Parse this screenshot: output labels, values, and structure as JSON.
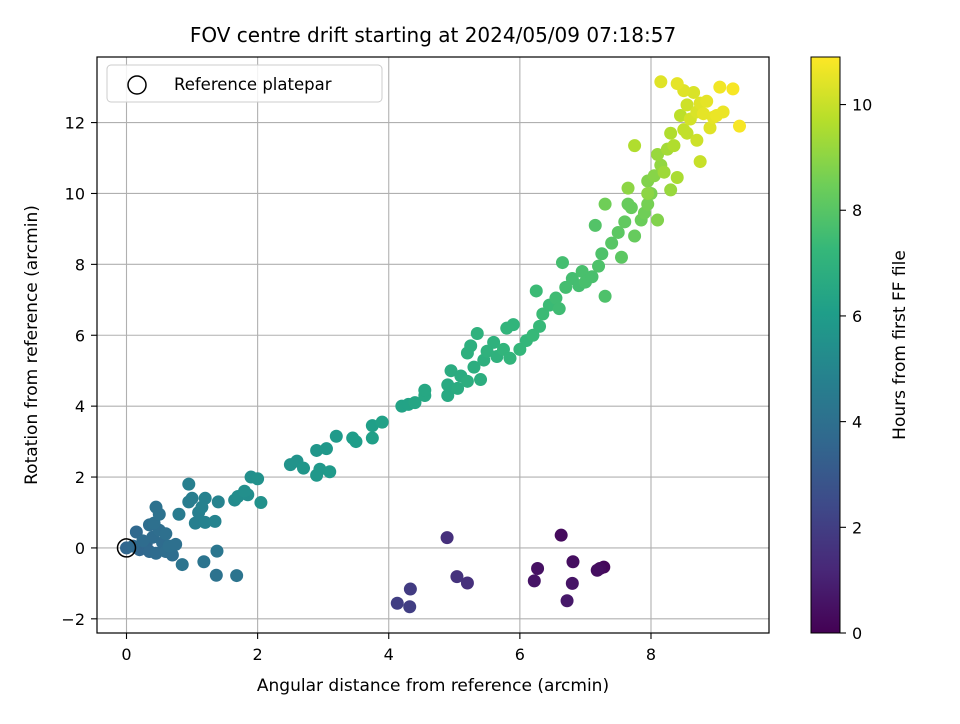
{
  "chart_data": {
    "type": "scatter",
    "title": "FOV centre drift starting at 2024/05/09 07:18:57",
    "xlabel": "Angular distance from reference (arcmin)",
    "ylabel": "Rotation from reference (arcmin)",
    "xlim": [
      -0.45,
      9.8
    ],
    "ylim": [
      -2.4,
      13.85
    ],
    "xticks": [
      0,
      2,
      4,
      6,
      8
    ],
    "yticks": [
      -2,
      0,
      2,
      4,
      6,
      8,
      10,
      12
    ],
    "grid": true,
    "colormap": "viridis",
    "color_variable": "Hours from first FF file",
    "colorbar": {
      "label": "Hours from first FF file",
      "range": [
        0,
        10.9
      ],
      "ticks": [
        0,
        2,
        4,
        6,
        8,
        10
      ]
    },
    "legend": {
      "position": "upper-left",
      "entries": [
        "Reference platepar"
      ]
    },
    "reference_point": {
      "x": 0,
      "y": 0,
      "marker": "hollow-circle"
    },
    "series": [
      {
        "points": [
          [
            6.63,
            0.36,
            0.3
          ],
          [
            6.81,
            -0.39,
            0.4
          ],
          [
            6.27,
            -0.58,
            0.5
          ],
          [
            6.22,
            -0.93,
            0.6
          ],
          [
            6.8,
            -1.0,
            0.6
          ],
          [
            6.72,
            -1.49,
            0.7
          ],
          [
            7.28,
            -0.54,
            0.2
          ],
          [
            7.22,
            -0.58,
            0.3
          ],
          [
            7.18,
            -0.63,
            0.4
          ],
          [
            4.89,
            0.29,
            1.5
          ],
          [
            5.04,
            -0.81,
            1.6
          ],
          [
            5.2,
            -0.99,
            1.5
          ],
          [
            4.33,
            -1.16,
            1.9
          ],
          [
            4.13,
            -1.56,
            2.0
          ],
          [
            4.32,
            -1.66,
            2.0
          ],
          [
            0.0,
            0.0,
            3.6
          ],
          [
            0.15,
            0.45,
            3.7
          ],
          [
            0.2,
            -0.05,
            3.6
          ],
          [
            0.3,
            0.1,
            3.6
          ],
          [
            0.35,
            -0.1,
            3.7
          ],
          [
            0.4,
            0.3,
            3.8
          ],
          [
            0.45,
            -0.15,
            3.8
          ],
          [
            0.5,
            0.5,
            3.9
          ],
          [
            0.55,
            0.15,
            3.8
          ],
          [
            0.6,
            -0.1,
            3.9
          ],
          [
            0.65,
            0.05,
            4.0
          ],
          [
            0.7,
            -0.2,
            3.9
          ],
          [
            0.75,
            0.1,
            4.0
          ],
          [
            0.42,
            0.7,
            4.0
          ],
          [
            0.5,
            0.95,
            4.1
          ],
          [
            0.45,
            1.15,
            4.1
          ],
          [
            0.35,
            0.65,
            3.9
          ],
          [
            0.25,
            0.2,
            3.8
          ],
          [
            0.1,
            0.05,
            3.7
          ],
          [
            0.6,
            0.4,
            4.0
          ],
          [
            0.85,
            -0.47,
            4.2
          ],
          [
            1.18,
            -0.39,
            4.2
          ],
          [
            1.38,
            -0.09,
            4.3
          ],
          [
            1.37,
            -0.77,
            4.1
          ],
          [
            1.68,
            -0.78,
            4.2
          ],
          [
            0.8,
            0.95,
            4.5
          ],
          [
            0.95,
            1.3,
            4.6
          ],
          [
            1.0,
            1.4,
            4.6
          ],
          [
            1.1,
            1.0,
            4.7
          ],
          [
            1.2,
            1.4,
            4.8
          ],
          [
            1.05,
            0.7,
            4.7
          ],
          [
            1.2,
            0.72,
            4.8
          ],
          [
            1.35,
            0.75,
            4.9
          ],
          [
            1.4,
            1.3,
            4.9
          ],
          [
            0.95,
            1.8,
            4.7
          ],
          [
            1.15,
            1.15,
            4.8
          ],
          [
            1.7,
            1.45,
            5.3
          ],
          [
            1.8,
            1.6,
            5.4
          ],
          [
            1.9,
            2.0,
            5.4
          ],
          [
            2.0,
            1.95,
            5.5
          ],
          [
            1.65,
            1.35,
            5.2
          ],
          [
            2.05,
            1.28,
            5.5
          ],
          [
            1.85,
            1.5,
            5.3
          ],
          [
            2.5,
            2.35,
            5.6
          ],
          [
            2.6,
            2.45,
            5.6
          ],
          [
            2.7,
            2.25,
            5.7
          ],
          [
            2.9,
            2.05,
            5.8
          ],
          [
            2.95,
            2.22,
            5.8
          ],
          [
            3.1,
            2.15,
            5.9
          ],
          [
            2.9,
            2.75,
            5.7
          ],
          [
            3.05,
            2.8,
            5.8
          ],
          [
            3.2,
            3.15,
            5.9
          ],
          [
            3.45,
            3.1,
            6.0
          ],
          [
            3.5,
            3.0,
            6.0
          ],
          [
            3.75,
            3.1,
            6.1
          ],
          [
            3.75,
            3.45,
            6.1
          ],
          [
            3.9,
            3.55,
            6.2
          ],
          [
            4.2,
            4.0,
            6.3
          ],
          [
            4.3,
            4.05,
            6.3
          ],
          [
            4.4,
            4.1,
            6.4
          ],
          [
            4.55,
            4.3,
            6.5
          ],
          [
            4.55,
            4.45,
            6.5
          ],
          [
            4.9,
            4.3,
            6.6
          ],
          [
            4.9,
            4.6,
            6.6
          ],
          [
            4.95,
            5.0,
            6.7
          ],
          [
            5.05,
            4.5,
            6.7
          ],
          [
            5.2,
            4.7,
            6.8
          ],
          [
            5.1,
            4.85,
            6.7
          ],
          [
            5.3,
            5.1,
            6.8
          ],
          [
            5.4,
            4.75,
            6.8
          ],
          [
            5.2,
            5.5,
            6.9
          ],
          [
            5.25,
            5.7,
            6.9
          ],
          [
            5.35,
            6.05,
            7.0
          ],
          [
            5.5,
            5.55,
            7.0
          ],
          [
            5.6,
            5.8,
            7.0
          ],
          [
            5.45,
            5.3,
            6.9
          ],
          [
            5.65,
            5.4,
            7.0
          ],
          [
            5.75,
            5.6,
            7.1
          ],
          [
            5.8,
            6.2,
            7.1
          ],
          [
            5.9,
            6.3,
            7.1
          ],
          [
            5.85,
            5.35,
            7.1
          ],
          [
            6.0,
            5.6,
            7.2
          ],
          [
            6.1,
            5.85,
            7.2
          ],
          [
            6.2,
            6.0,
            7.3
          ],
          [
            6.3,
            6.25,
            7.3
          ],
          [
            6.35,
            6.6,
            7.4
          ],
          [
            6.45,
            6.85,
            7.4
          ],
          [
            6.55,
            7.05,
            7.5
          ],
          [
            6.25,
            7.25,
            7.4
          ],
          [
            6.6,
            6.75,
            7.5
          ],
          [
            6.7,
            7.35,
            7.6
          ],
          [
            6.8,
            7.6,
            7.6
          ],
          [
            6.9,
            7.4,
            7.6
          ],
          [
            6.95,
            7.8,
            7.7
          ],
          [
            7.0,
            7.5,
            7.7
          ],
          [
            7.1,
            7.65,
            7.7
          ],
          [
            7.2,
            7.95,
            7.8
          ],
          [
            7.3,
            7.1,
            7.8
          ],
          [
            7.25,
            8.3,
            7.8
          ],
          [
            6.65,
            8.05,
            7.6
          ],
          [
            7.15,
            9.1,
            7.9
          ],
          [
            7.4,
            8.6,
            8.0
          ],
          [
            7.5,
            8.9,
            8.1
          ],
          [
            7.55,
            8.2,
            8.1
          ],
          [
            7.6,
            9.2,
            8.2
          ],
          [
            7.7,
            9.6,
            8.3
          ],
          [
            7.75,
            8.8,
            8.3
          ],
          [
            7.65,
            9.7,
            8.3
          ],
          [
            7.85,
            9.25,
            8.4
          ],
          [
            7.9,
            9.45,
            8.5
          ],
          [
            7.95,
            9.7,
            8.6
          ],
          [
            8.0,
            10.0,
            8.7
          ],
          [
            7.95,
            10.35,
            8.8
          ],
          [
            8.05,
            10.5,
            8.9
          ],
          [
            8.1,
            9.25,
            8.8
          ],
          [
            8.15,
            10.8,
            9.1
          ],
          [
            8.1,
            11.1,
            9.2
          ],
          [
            8.2,
            10.6,
            9.3
          ],
          [
            8.25,
            11.25,
            9.4
          ],
          [
            8.3,
            10.1,
            9.2
          ],
          [
            8.3,
            11.7,
            9.6
          ],
          [
            8.35,
            11.35,
            9.6
          ],
          [
            8.4,
            10.45,
            9.5
          ],
          [
            8.45,
            12.2,
            9.8
          ],
          [
            8.5,
            11.8,
            9.9
          ],
          [
            8.55,
            12.5,
            10.1
          ],
          [
            8.6,
            12.1,
            10.2
          ],
          [
            8.65,
            12.85,
            10.3
          ],
          [
            8.7,
            12.3,
            10.3
          ],
          [
            8.7,
            11.5,
            10.1
          ],
          [
            8.75,
            12.55,
            10.4
          ],
          [
            8.8,
            12.25,
            10.5
          ],
          [
            8.85,
            12.6,
            10.5
          ],
          [
            8.9,
            11.85,
            10.4
          ],
          [
            9.0,
            12.2,
            10.6
          ],
          [
            9.05,
            13.0,
            10.7
          ],
          [
            9.25,
            12.95,
            10.8
          ],
          [
            9.35,
            11.9,
            10.8
          ],
          [
            8.4,
            13.1,
            10.5
          ],
          [
            8.15,
            13.15,
            10.4
          ],
          [
            8.5,
            12.9,
            10.4
          ],
          [
            8.75,
            10.9,
            10.0
          ],
          [
            7.75,
            11.35,
            9.6
          ],
          [
            7.65,
            10.15,
            9.0
          ],
          [
            7.3,
            9.7,
            8.5
          ],
          [
            7.95,
            10.0,
            9.0
          ],
          [
            8.55,
            11.7,
            9.9
          ],
          [
            8.95,
            12.15,
            10.5
          ],
          [
            9.1,
            12.3,
            10.6
          ]
        ]
      }
    ]
  }
}
